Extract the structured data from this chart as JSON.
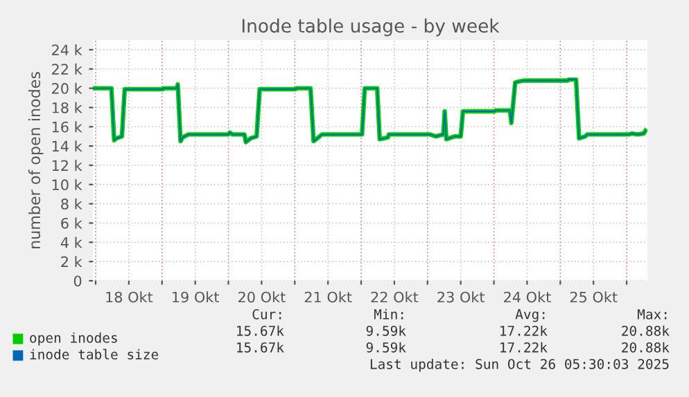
{
  "chart_data": {
    "type": "line",
    "title": "Inode table usage - by week",
    "ylabel": "number of open inodes",
    "x": [
      "2025-10-17T23:00",
      "2025-10-18T05:42",
      "2025-10-18T06:42",
      "2025-10-18T07:30",
      "2025-10-18T09:30",
      "2025-10-18T10:30",
      "2025-10-19T00:18",
      "2025-10-19T00:30",
      "2025-10-19T05:18",
      "2025-10-19T05:42",
      "2025-10-19T06:42",
      "2025-10-19T07:30",
      "2025-10-19T09:30",
      "2025-10-20T00:00",
      "2025-10-20T00:30",
      "2025-10-20T01:30",
      "2025-10-20T05:48",
      "2025-10-20T06:18",
      "2025-10-20T08:00",
      "2025-10-20T10:12",
      "2025-10-20T11:18",
      "2025-10-21T00:18",
      "2025-10-21T00:30",
      "2025-10-21T05:42",
      "2025-10-21T06:48",
      "2025-10-21T09:00",
      "2025-10-21T09:48",
      "2025-10-22T00:18",
      "2025-10-22T01:18",
      "2025-10-22T05:48",
      "2025-10-22T06:42",
      "2025-10-22T09:42",
      "2025-10-22T10:00",
      "2025-10-23T01:00",
      "2025-10-23T03:00",
      "2025-10-23T05:42",
      "2025-10-23T06:12",
      "2025-10-23T06:48",
      "2025-10-23T09:42",
      "2025-10-23T12:00",
      "2025-10-23T12:48",
      "2025-10-24T00:18",
      "2025-10-24T00:36",
      "2025-10-24T05:48",
      "2025-10-24T06:18",
      "2025-10-24T07:42",
      "2025-10-24T09:00",
      "2025-10-24T11:00",
      "2025-10-25T02:42",
      "2025-10-25T03:00",
      "2025-10-25T05:42",
      "2025-10-25T06:48",
      "2025-10-25T09:00",
      "2025-10-25T09:42",
      "2025-10-26T00:42",
      "2025-10-26T02:00",
      "2025-10-26T04:00",
      "2025-10-26T06:12",
      "2025-10-26T06:48"
    ],
    "series": [
      {
        "name": "open inodes",
        "color": "#00cc00",
        "values": [
          20000,
          20000,
          14600,
          14800,
          15000,
          19900,
          19900,
          20000,
          20000,
          20400,
          14500,
          14900,
          15200,
          15200,
          15400,
          15200,
          15200,
          14400,
          14800,
          15000,
          19900,
          19900,
          20000,
          20000,
          14500,
          15000,
          15200,
          15200,
          20000,
          20000,
          14700,
          14900,
          15200,
          15200,
          15000,
          15200,
          17600,
          14700,
          15000,
          15000,
          17600,
          17600,
          17700,
          17700,
          16400,
          20600,
          20700,
          20800,
          20800,
          20900,
          20900,
          14800,
          15000,
          15200,
          15200,
          15300,
          15200,
          15300,
          15600
        ]
      },
      {
        "name": "inode table size",
        "color": "#0066b3",
        "values": [
          20000,
          20000,
          14600,
          14800,
          15000,
          19900,
          19900,
          20000,
          20000,
          20400,
          14500,
          14900,
          15200,
          15200,
          15400,
          15200,
          15200,
          14400,
          14800,
          15000,
          19900,
          19900,
          20000,
          20000,
          14500,
          15000,
          15200,
          15200,
          20000,
          20000,
          14700,
          14900,
          15200,
          15200,
          15000,
          15200,
          17600,
          14700,
          15000,
          15000,
          17600,
          17600,
          17700,
          17700,
          16400,
          20600,
          20700,
          20800,
          20800,
          20900,
          20900,
          14800,
          15000,
          15200,
          15200,
          15300,
          15200,
          15300,
          15600
        ]
      }
    ],
    "xlim": [
      "2025-10-17T23:00",
      "2025-10-26T07:30"
    ],
    "xticks": [
      {
        "value": "2025-10-18T00:00",
        "label": null
      },
      {
        "value": "2025-10-18T12:00",
        "label": "18 Okt"
      },
      {
        "value": "2025-10-19T00:00",
        "label": null
      },
      {
        "value": "2025-10-19T12:00",
        "label": "19 Okt"
      },
      {
        "value": "2025-10-20T00:00",
        "label": null
      },
      {
        "value": "2025-10-20T12:00",
        "label": "20 Okt"
      },
      {
        "value": "2025-10-21T00:00",
        "label": null
      },
      {
        "value": "2025-10-21T12:00",
        "label": "21 Okt"
      },
      {
        "value": "2025-10-22T00:00",
        "label": null
      },
      {
        "value": "2025-10-22T12:00",
        "label": "22 Okt"
      },
      {
        "value": "2025-10-23T00:00",
        "label": null
      },
      {
        "value": "2025-10-23T12:00",
        "label": "23 Okt"
      },
      {
        "value": "2025-10-24T00:00",
        "label": null
      },
      {
        "value": "2025-10-24T12:00",
        "label": "24 Okt"
      },
      {
        "value": "2025-10-25T00:00",
        "label": null
      },
      {
        "value": "2025-10-25T12:00",
        "label": "25 Okt"
      },
      {
        "value": "2025-10-26T00:00",
        "label": null
      }
    ],
    "ylim": [
      0,
      25000
    ],
    "yticks": [
      0,
      {
        "value": 2000,
        "label": "2 k"
      },
      {
        "value": 4000,
        "label": "4 k"
      },
      {
        "value": 6000,
        "label": "6 k"
      },
      {
        "value": 8000,
        "label": "8 k"
      },
      {
        "value": 10000,
        "label": "10 k"
      },
      {
        "value": 12000,
        "label": "12 k"
      },
      {
        "value": 14000,
        "label": "14 k"
      },
      {
        "value": 16000,
        "label": "16 k"
      },
      {
        "value": 18000,
        "label": "18 k"
      },
      {
        "value": 20000,
        "label": "20 k"
      },
      {
        "value": 22000,
        "label": "22 k"
      },
      {
        "value": 24000,
        "label": "24 k"
      }
    ],
    "grid": true,
    "legend": "bottom left",
    "annotations": [
      "Cur:",
      "Min:",
      "Avg:",
      "Max:",
      "15.67k",
      "9.59k",
      "17.22k",
      "20.88k",
      "15.67k",
      "9.59k",
      "17.22k",
      "20.88k",
      "Last update: Sun Oct 26 05:30:03 2025"
    ]
  }
}
